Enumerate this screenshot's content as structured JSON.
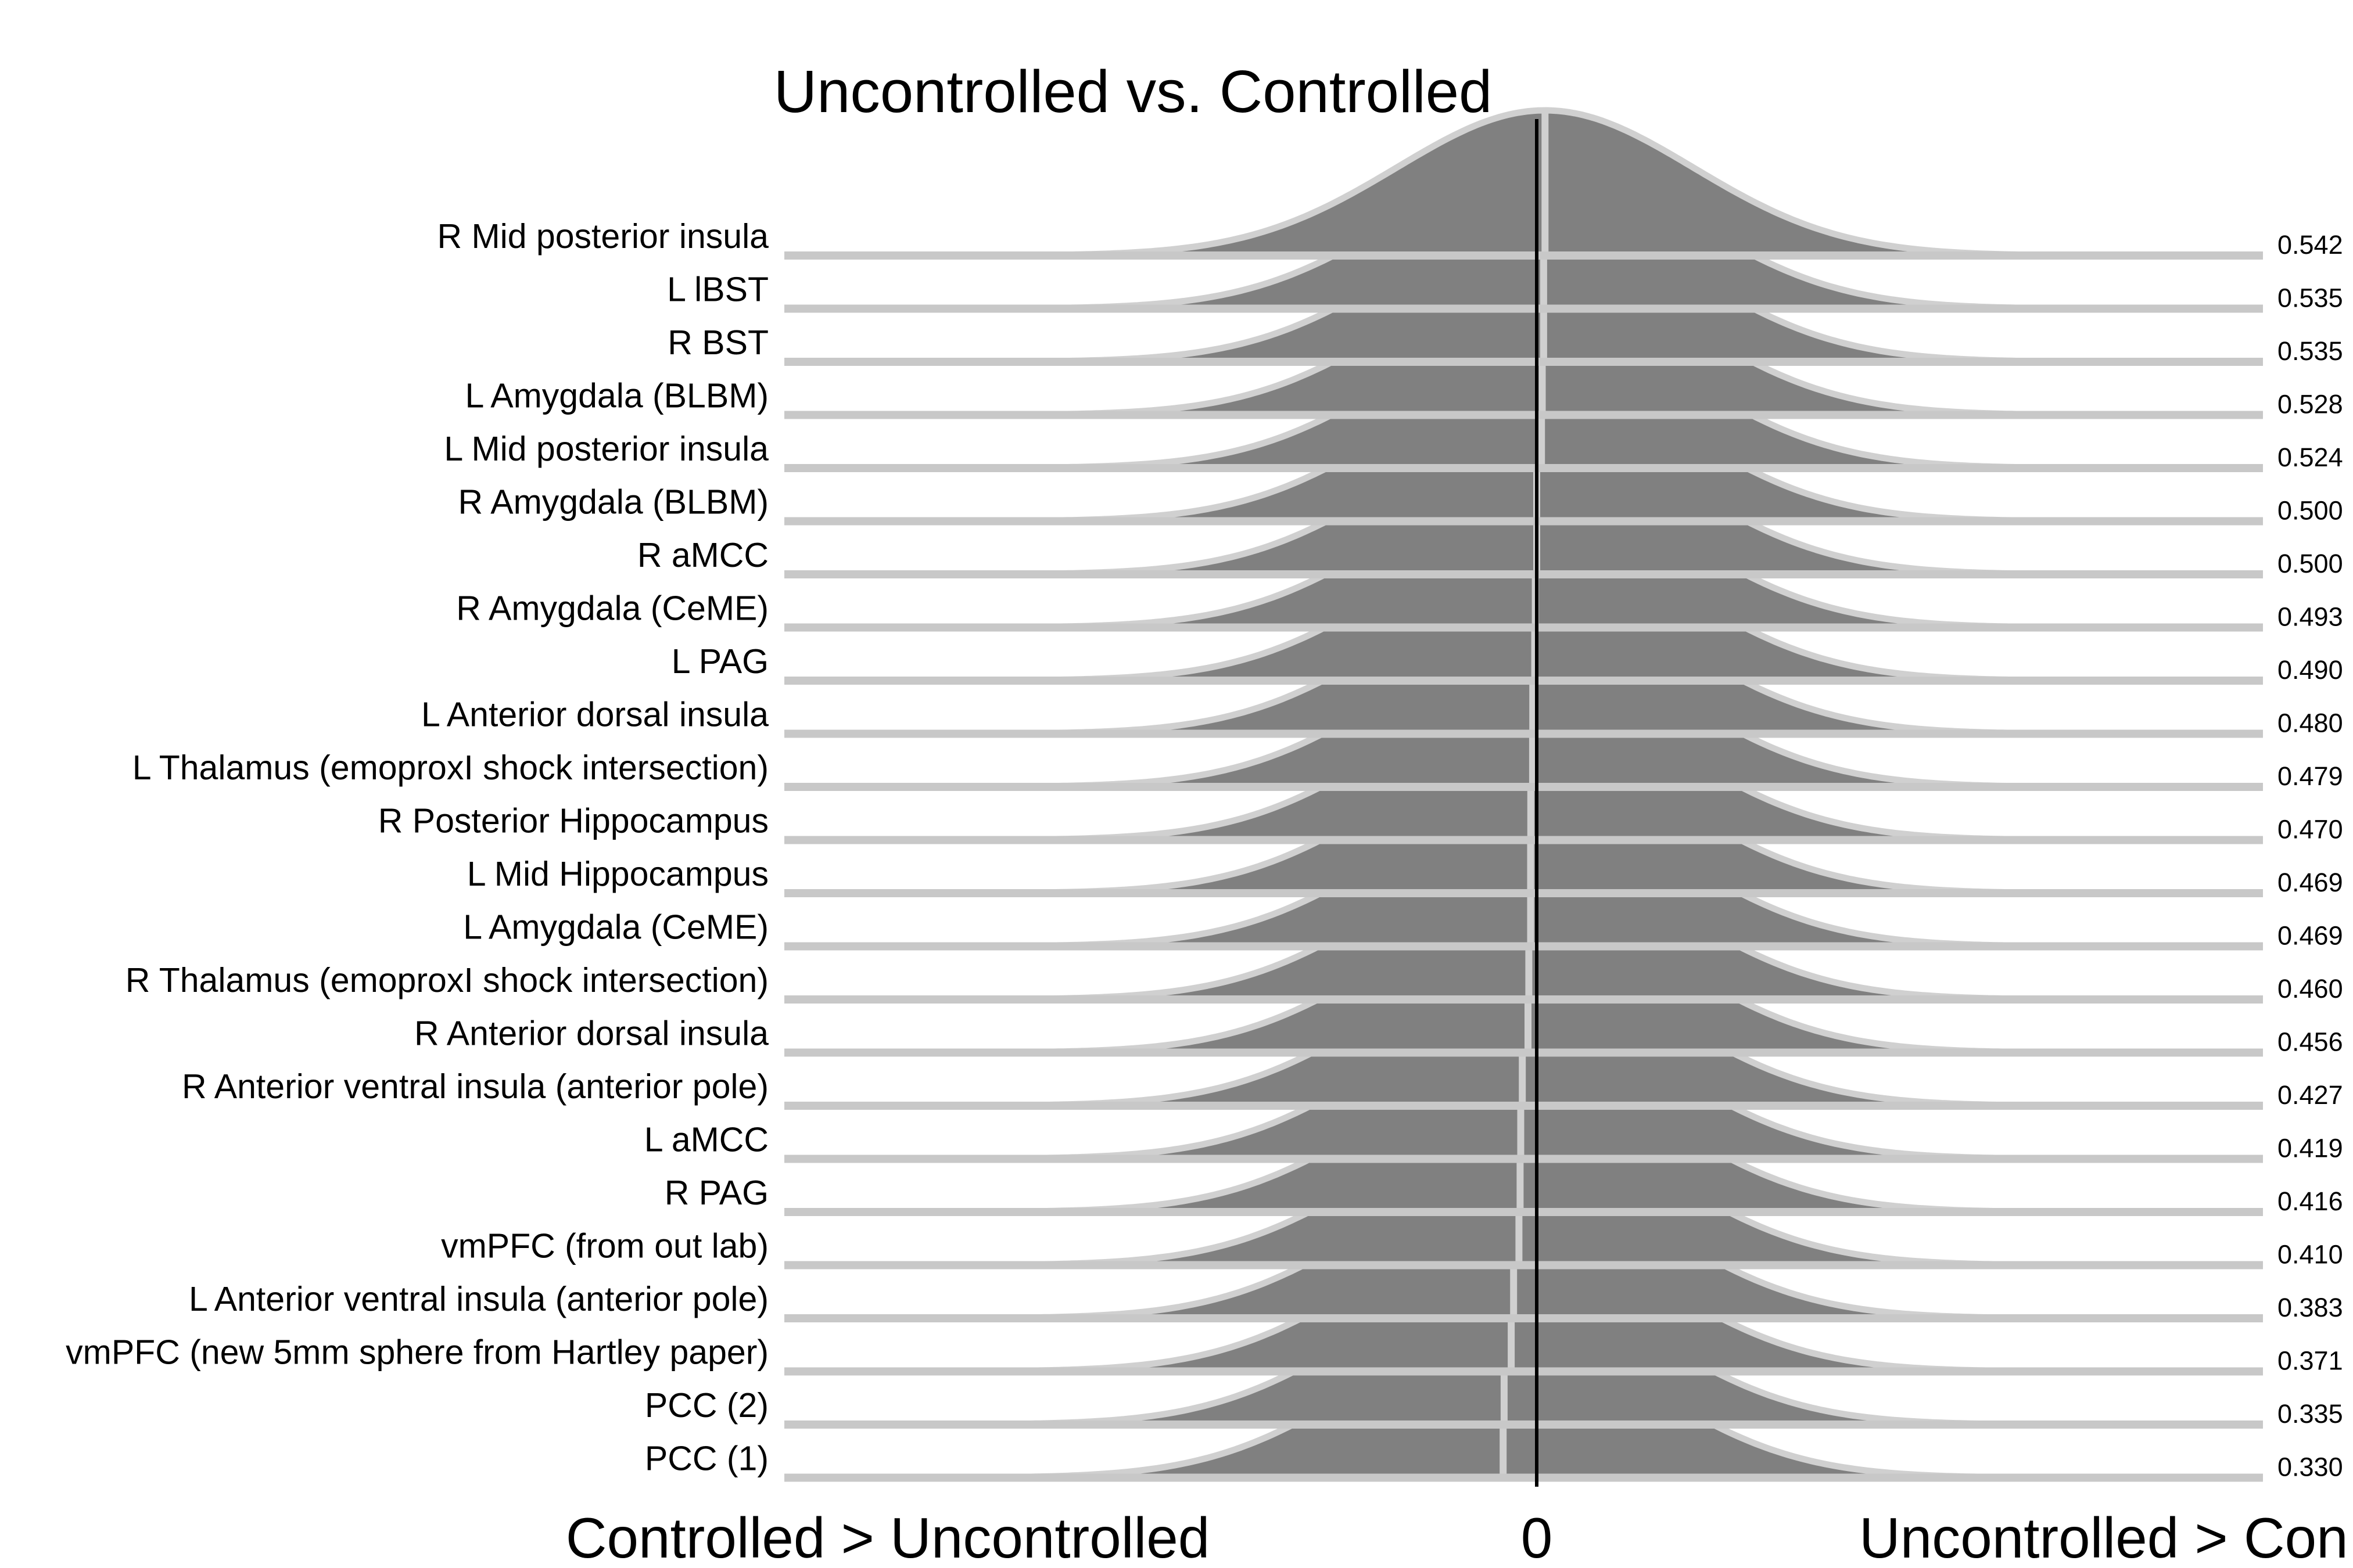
{
  "chart_data": {
    "type": "ridgeline",
    "title": "Uncontrolled vs. Controlled",
    "x_axis": {
      "left_label": "Controlled > Uncontrolled",
      "center_label": "0",
      "right_label": "Uncontrolled > Con"
    },
    "fill_color": "#808080",
    "outline_color": "#d0d0d0",
    "zero_line_color": "#000000",
    "rows": [
      {
        "label": "R Mid posterior insula",
        "value": "0.542",
        "p": 0.542
      },
      {
        "label": "L lBST",
        "value": "0.535",
        "p": 0.535
      },
      {
        "label": "R BST",
        "value": "0.535",
        "p": 0.535
      },
      {
        "label": "L Amygdala (BLBM)",
        "value": "0.528",
        "p": 0.528
      },
      {
        "label": "L Mid posterior insula",
        "value": "0.524",
        "p": 0.524
      },
      {
        "label": "R Amygdala (BLBM)",
        "value": "0.500",
        "p": 0.5
      },
      {
        "label": "R aMCC",
        "value": "0.500",
        "p": 0.5
      },
      {
        "label": "R Amygdala (CeME)",
        "value": "0.493",
        "p": 0.493
      },
      {
        "label": "L PAG",
        "value": "0.490",
        "p": 0.49
      },
      {
        "label": "L Anterior dorsal insula",
        "value": "0.480",
        "p": 0.48
      },
      {
        "label": "L Thalamus (emoproxI shock intersection)",
        "value": "0.479",
        "p": 0.479
      },
      {
        "label": "R Posterior Hippocampus",
        "value": "0.470",
        "p": 0.47
      },
      {
        "label": "L Mid Hippocampus",
        "value": "0.469",
        "p": 0.469
      },
      {
        "label": "L Amygdala (CeME)",
        "value": "0.469",
        "p": 0.469
      },
      {
        "label": "R Thalamus (emoproxI shock intersection)",
        "value": "0.460",
        "p": 0.46
      },
      {
        "label": "R Anterior dorsal insula",
        "value": "0.456",
        "p": 0.456
      },
      {
        "label": "R Anterior ventral insula (anterior pole)",
        "value": "0.427",
        "p": 0.427
      },
      {
        "label": "L aMCC",
        "value": "0.419",
        "p": 0.419
      },
      {
        "label": "R PAG",
        "value": "0.416",
        "p": 0.416
      },
      {
        "label": "vmPFC (from out lab)",
        "value": "0.410",
        "p": 0.41
      },
      {
        "label": "L Anterior ventral insula (anterior pole)",
        "value": "0.383",
        "p": 0.383
      },
      {
        "label": "vmPFC (new 5mm sphere from Hartley paper)",
        "value": "0.371",
        "p": 0.371
      },
      {
        "label": "PCC (2)",
        "value": "0.335",
        "p": 0.335
      },
      {
        "label": "PCC (1)",
        "value": "0.330",
        "p": 0.33
      }
    ]
  }
}
